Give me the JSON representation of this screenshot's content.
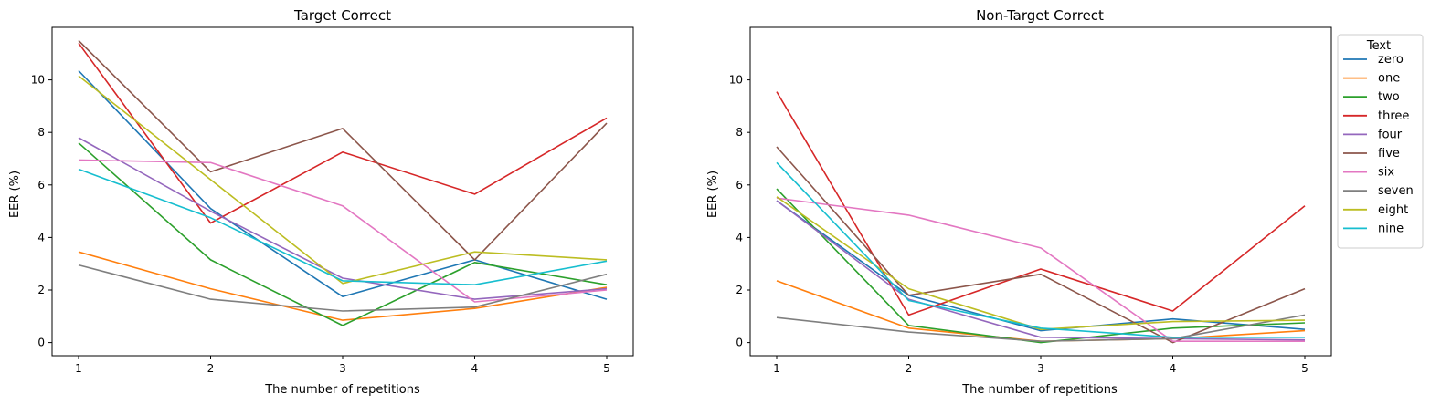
{
  "chart_data": [
    {
      "type": "line",
      "title": "Target Correct",
      "xlabel": "The number of repetitions",
      "ylabel": "EER (%)",
      "x": [
        1,
        2,
        3,
        4,
        5
      ],
      "xticks": [
        "1",
        "2",
        "3",
        "4",
        "5"
      ],
      "yticks": [
        "0",
        "2",
        "4",
        "6",
        "8",
        "10"
      ],
      "ylim": [
        -0.5,
        12
      ],
      "series": [
        {
          "name": "zero",
          "color": "#1f77b4",
          "values": [
            10.35,
            5.1,
            1.75,
            3.15,
            1.65
          ]
        },
        {
          "name": "one",
          "color": "#ff7f0e",
          "values": [
            3.45,
            2.05,
            0.85,
            1.3,
            2.1
          ]
        },
        {
          "name": "two",
          "color": "#2ca02c",
          "values": [
            7.6,
            3.15,
            0.65,
            3.05,
            2.2
          ]
        },
        {
          "name": "three",
          "color": "#d62728",
          "values": [
            11.4,
            4.55,
            7.25,
            5.65,
            8.55
          ]
        },
        {
          "name": "four",
          "color": "#9467bd",
          "values": [
            7.8,
            5.0,
            2.45,
            1.65,
            2.05
          ]
        },
        {
          "name": "five",
          "color": "#8c564b",
          "values": [
            11.5,
            6.5,
            8.15,
            3.15,
            8.35
          ]
        },
        {
          "name": "six",
          "color": "#e377c2",
          "values": [
            6.95,
            6.85,
            5.2,
            1.55,
            2.0
          ]
        },
        {
          "name": "seven",
          "color": "#7f7f7f",
          "values": [
            2.95,
            1.65,
            1.2,
            1.35,
            2.6
          ]
        },
        {
          "name": "eight",
          "color": "#bcbd22",
          "values": [
            10.15,
            6.2,
            2.25,
            3.45,
            3.15
          ]
        },
        {
          "name": "nine",
          "color": "#17becf",
          "values": [
            6.6,
            4.75,
            2.35,
            2.2,
            3.1
          ]
        }
      ]
    },
    {
      "type": "line",
      "title": "Non-Target Correct",
      "xlabel": "The number of repetitions",
      "ylabel": "EER (%)",
      "x": [
        1,
        2,
        3,
        4,
        5
      ],
      "xticks": [
        "1",
        "2",
        "3",
        "4",
        "5"
      ],
      "yticks": [
        "0",
        "2",
        "4",
        "6",
        "8",
        "10"
      ],
      "ylim": [
        -0.5,
        12
      ],
      "legend": {
        "title": "Text",
        "placement": "outside-top-right"
      },
      "series": [
        {
          "name": "zero",
          "color": "#1f77b4",
          "values": [
            5.4,
            1.8,
            0.45,
            0.9,
            0.5
          ]
        },
        {
          "name": "one",
          "color": "#ff7f0e",
          "values": [
            2.35,
            0.55,
            0.05,
            0.15,
            0.45
          ]
        },
        {
          "name": "two",
          "color": "#2ca02c",
          "values": [
            5.85,
            0.65,
            0.0,
            0.55,
            0.75
          ]
        },
        {
          "name": "three",
          "color": "#d62728",
          "values": [
            9.55,
            1.05,
            2.8,
            1.2,
            5.2
          ]
        },
        {
          "name": "four",
          "color": "#9467bd",
          "values": [
            5.4,
            1.65,
            0.2,
            0.15,
            0.1
          ]
        },
        {
          "name": "five",
          "color": "#8c564b",
          "values": [
            7.45,
            1.8,
            2.6,
            0.0,
            2.05
          ]
        },
        {
          "name": "six",
          "color": "#e377c2",
          "values": [
            5.5,
            4.85,
            3.6,
            0.05,
            0.05
          ]
        },
        {
          "name": "seven",
          "color": "#7f7f7f",
          "values": [
            0.95,
            0.4,
            0.05,
            0.15,
            1.05
          ]
        },
        {
          "name": "eight",
          "color": "#bcbd22",
          "values": [
            5.55,
            2.05,
            0.5,
            0.8,
            0.85
          ]
        },
        {
          "name": "nine",
          "color": "#17becf",
          "values": [
            6.85,
            1.6,
            0.55,
            0.2,
            0.2
          ]
        }
      ]
    }
  ]
}
